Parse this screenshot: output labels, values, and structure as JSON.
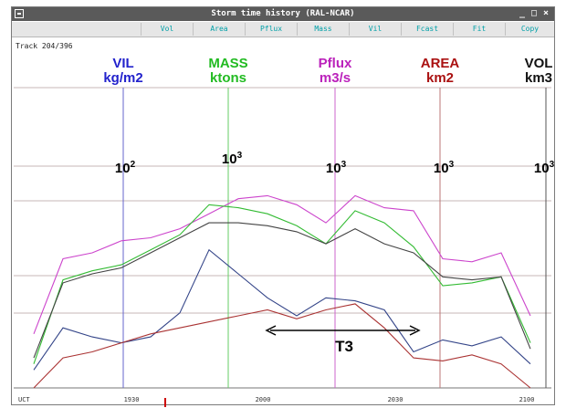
{
  "window": {
    "title": "Storm time history (RAL-NCAR)"
  },
  "menu": {
    "items": [
      "Vol",
      "Area",
      "Pflux",
      "Mass",
      "Vil",
      "Fcast",
      "Fit",
      "Copy"
    ]
  },
  "track": {
    "label": "Track 204/396"
  },
  "headers": [
    {
      "name": "VIL",
      "unit": "kg/m2",
      "color": "#2222cc"
    },
    {
      "name": "MASS",
      "unit": "ktons",
      "color": "#22bb22"
    },
    {
      "name": "Pflux",
      "unit": "m3/s",
      "color": "#bb22bb"
    },
    {
      "name": "AREA",
      "unit": "km2",
      "color": "#aa1111"
    },
    {
      "name": "VOL",
      "unit": "km3",
      "color": "#111111"
    }
  ],
  "axis_colors": [
    "#6666cc",
    "#66cc66",
    "#cc66cc",
    "#bb7777",
    "#555555"
  ],
  "scale_labels": [
    {
      "base": "10",
      "exp": "2"
    },
    {
      "base": "10",
      "exp": "3"
    },
    {
      "base": "10",
      "exp": "3"
    },
    {
      "base": "10",
      "exp": "3"
    },
    {
      "base": "10",
      "exp": "3"
    }
  ],
  "time_ticks": [
    "UCT",
    "1930",
    "2000",
    "2030",
    "2100"
  ],
  "annotation": {
    "label": "T3"
  },
  "series": [
    {
      "name": "Pflux",
      "color": "#cc44cc",
      "y": [
        0.82,
        0.57,
        0.55,
        0.51,
        0.5,
        0.47,
        0.42,
        0.37,
        0.36,
        0.39,
        0.45,
        0.36,
        0.4,
        0.41,
        0.57,
        0.58,
        0.55,
        0.76
      ]
    },
    {
      "name": "MASS",
      "color": "#33bb33",
      "y": [
        0.92,
        0.64,
        0.61,
        0.59,
        0.54,
        0.49,
        0.39,
        0.4,
        0.42,
        0.46,
        0.52,
        0.41,
        0.45,
        0.53,
        0.66,
        0.65,
        0.63,
        0.85
      ]
    },
    {
      "name": "VOL",
      "color": "#444444",
      "y": [
        0.9,
        0.65,
        0.62,
        0.6,
        0.55,
        0.5,
        0.45,
        0.45,
        0.46,
        0.48,
        0.52,
        0.47,
        0.52,
        0.55,
        0.63,
        0.64,
        0.63,
        0.87
      ]
    },
    {
      "name": "VIL",
      "color": "#334488",
      "y": [
        0.94,
        0.8,
        0.83,
        0.85,
        0.83,
        0.75,
        0.54,
        0.62,
        0.7,
        0.76,
        0.7,
        0.71,
        0.74,
        0.88,
        0.84,
        0.86,
        0.83,
        0.92
      ]
    },
    {
      "name": "AREA",
      "color": "#aa3333",
      "y": [
        1.02,
        0.9,
        0.88,
        0.85,
        0.82,
        0.8,
        0.78,
        0.76,
        0.74,
        0.77,
        0.74,
        0.72,
        0.8,
        0.9,
        0.91,
        0.89,
        0.92,
        1.1
      ]
    }
  ]
}
